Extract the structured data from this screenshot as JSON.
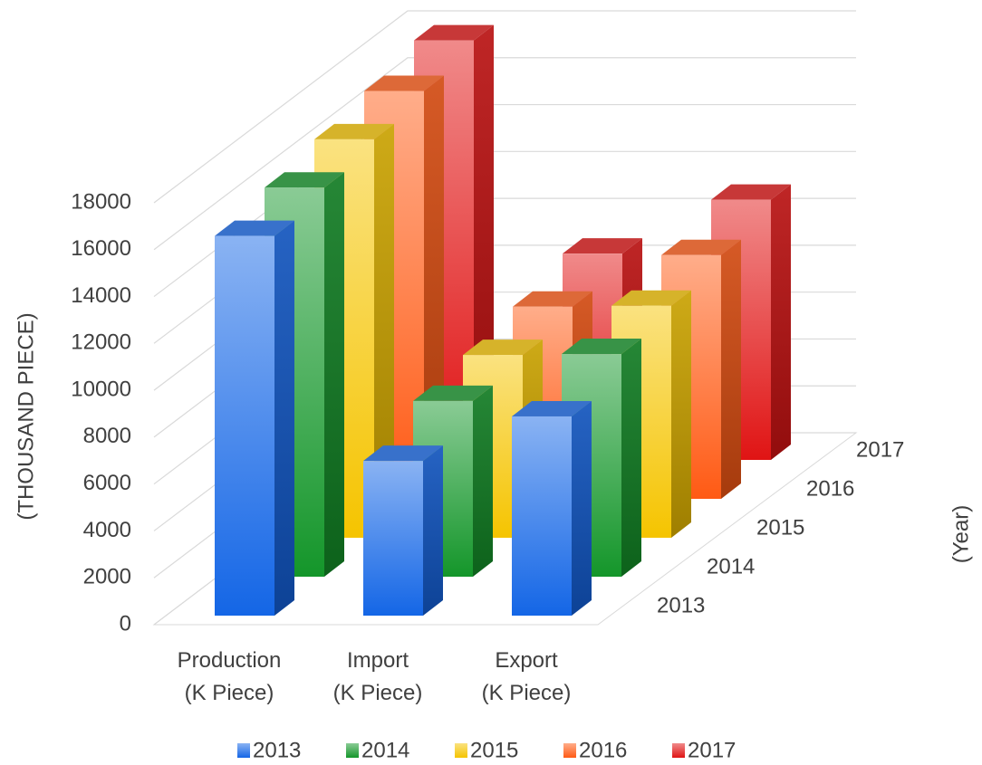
{
  "chart_data": {
    "type": "bar3d",
    "y_axis_label": "(THOUSAND PIECE)",
    "z_axis_label": "(Year)",
    "categories": [
      "Production\n(K Piece)",
      "Import\n(K Piece)",
      "Export\n(K Piece)"
    ],
    "series": [
      {
        "name": "2013",
        "color": "#1466e6",
        "values": [
          16200,
          6600,
          8500
        ]
      },
      {
        "name": "2014",
        "color": "#14962a",
        "values": [
          16600,
          7500,
          9500
        ]
      },
      {
        "name": "2015",
        "color": "#f5c400",
        "values": [
          17000,
          7800,
          9900
        ]
      },
      {
        "name": "2016",
        "color": "#ff5a14",
        "values": [
          17400,
          8200,
          10400
        ]
      },
      {
        "name": "2017",
        "color": "#e01414",
        "values": [
          17900,
          8800,
          11100
        ]
      }
    ],
    "ylim": [
      0,
      18000
    ],
    "yticks": [
      0,
      2000,
      4000,
      6000,
      8000,
      10000,
      12000,
      14000,
      16000,
      18000
    ],
    "grid": true,
    "legend": "bottom"
  }
}
